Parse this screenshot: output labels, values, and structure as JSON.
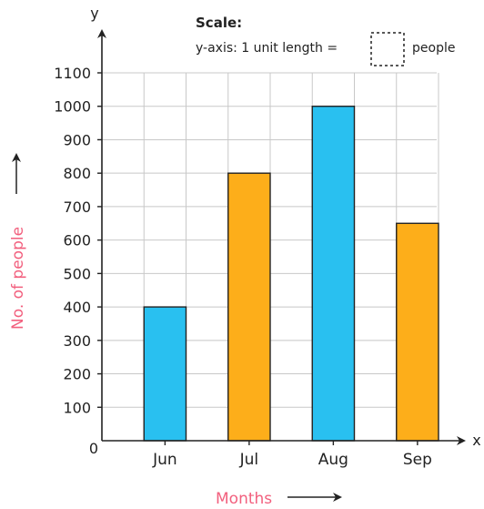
{
  "chart_data": {
    "type": "bar",
    "categories": [
      "Jun",
      "Jul",
      "Aug",
      "Sep"
    ],
    "values": [
      400,
      800,
      1000,
      650
    ],
    "bar_colors": [
      "#29c0f0",
      "#fdae1a",
      "#29c0f0",
      "#fdae1a"
    ],
    "xlabel": "Months",
    "ylabel": "No. of people",
    "x_axis_letter": "x",
    "y_axis_letter": "y",
    "origin_label": "0",
    "ylim": [
      0,
      1100
    ],
    "yticks": [
      100,
      200,
      300,
      400,
      500,
      600,
      700,
      800,
      900,
      1000,
      1100
    ],
    "grid": true,
    "label_color": "#f2607e",
    "scale_note": {
      "title": "Scale:",
      "text": "y-axis: 1 unit length =",
      "unit": "people"
    }
  }
}
